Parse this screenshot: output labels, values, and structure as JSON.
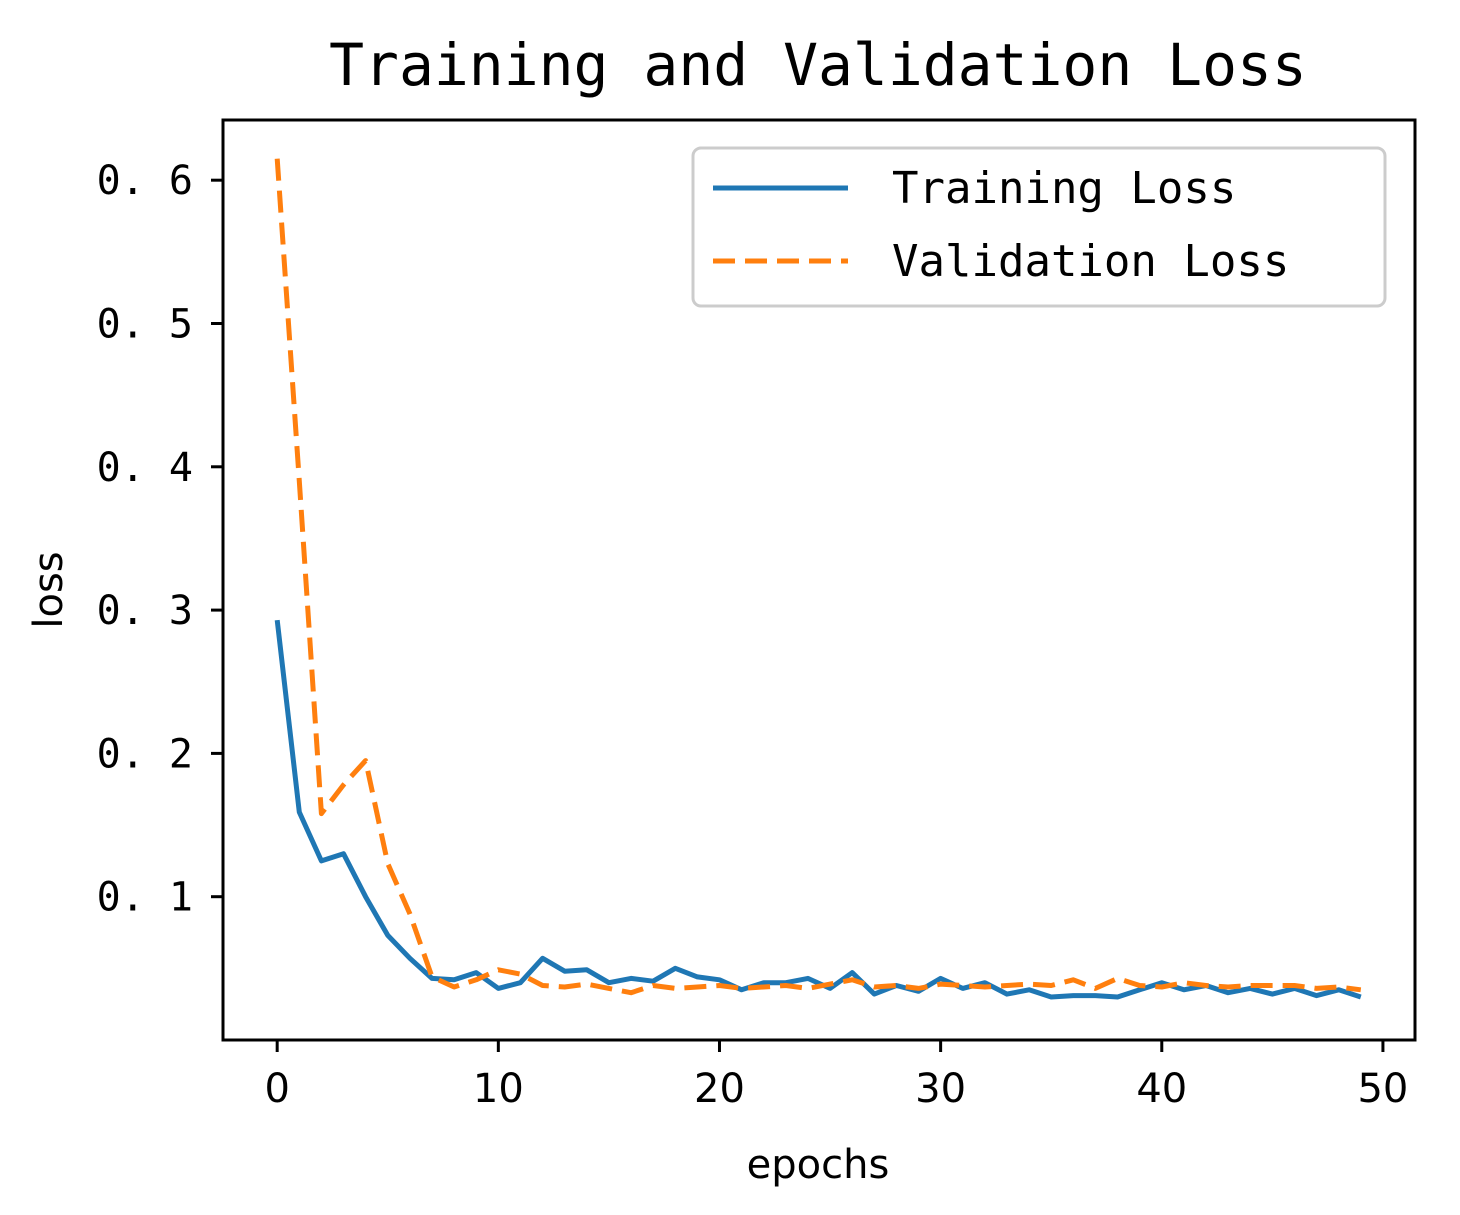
{
  "chart_data": {
    "type": "line",
    "title": "Training and Validation Loss",
    "xlabel": "epochs",
    "ylabel": "loss",
    "xlim": [
      -2.45,
      51.45
    ],
    "ylim": [
      0.0,
      0.642
    ],
    "xticks": [
      0,
      10,
      20,
      30,
      40,
      50
    ],
    "xtick_labels": [
      "0",
      "10",
      "20",
      "30",
      "40",
      "50"
    ],
    "yticks": [
      0.1,
      0.2,
      0.3,
      0.4,
      0.5,
      0.6
    ],
    "ytick_labels": [
      "0. 1",
      "0. 2",
      "0. 3",
      "0. 4",
      "0. 5",
      "0. 6"
    ],
    "legend_position": "top-right",
    "grid": false,
    "x": [
      0,
      1,
      2,
      3,
      4,
      5,
      6,
      7,
      8,
      9,
      10,
      11,
      12,
      13,
      14,
      15,
      16,
      17,
      18,
      19,
      20,
      21,
      22,
      23,
      24,
      25,
      26,
      27,
      28,
      29,
      30,
      31,
      32,
      33,
      34,
      35,
      36,
      37,
      38,
      39,
      40,
      41,
      42,
      43,
      44,
      45,
      46,
      47,
      48,
      49
    ],
    "series": [
      {
        "name": "Training Loss",
        "color": "#1f77b4",
        "style": "solid",
        "values": [
          0.293,
          0.159,
          0.125,
          0.13,
          0.1,
          0.073,
          0.057,
          0.043,
          0.042,
          0.047,
          0.036,
          0.04,
          0.057,
          0.048,
          0.049,
          0.04,
          0.043,
          0.041,
          0.05,
          0.044,
          0.042,
          0.035,
          0.04,
          0.04,
          0.043,
          0.036,
          0.047,
          0.032,
          0.038,
          0.034,
          0.043,
          0.036,
          0.04,
          0.032,
          0.035,
          0.03,
          0.031,
          0.031,
          0.03,
          0.035,
          0.04,
          0.035,
          0.038,
          0.033,
          0.036,
          0.032,
          0.036,
          0.031,
          0.035,
          0.03
        ]
      },
      {
        "name": "Validation Loss",
        "color": "#ff7f0e",
        "style": "dashed",
        "values": [
          0.615,
          0.39,
          0.158,
          0.178,
          0.195,
          0.123,
          0.088,
          0.044,
          0.037,
          0.042,
          0.049,
          0.046,
          0.038,
          0.037,
          0.039,
          0.036,
          0.033,
          0.038,
          0.036,
          0.037,
          0.038,
          0.036,
          0.037,
          0.038,
          0.036,
          0.039,
          0.042,
          0.037,
          0.038,
          0.036,
          0.039,
          0.038,
          0.037,
          0.038,
          0.039,
          0.038,
          0.042,
          0.036,
          0.043,
          0.038,
          0.037,
          0.04,
          0.038,
          0.037,
          0.038,
          0.038,
          0.038,
          0.036,
          0.037,
          0.035
        ]
      }
    ]
  }
}
